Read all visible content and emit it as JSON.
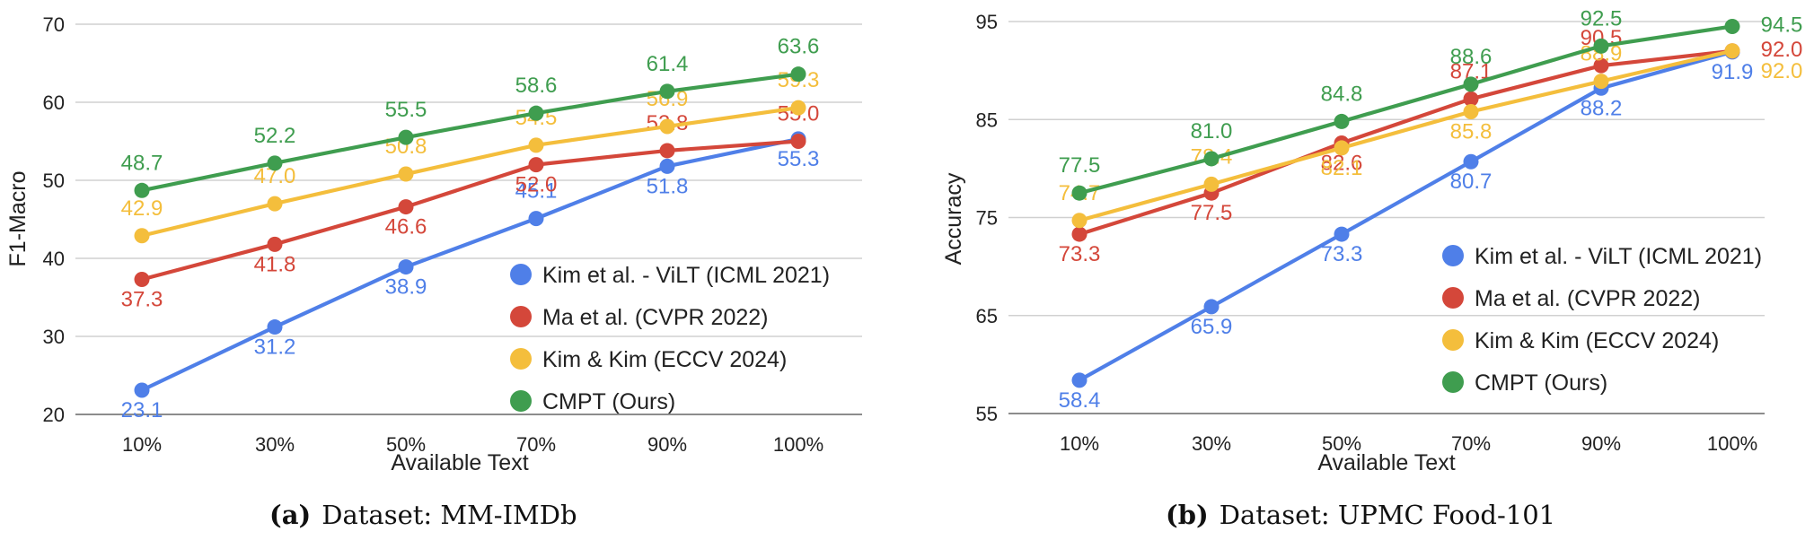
{
  "chart_data": [
    {
      "type": "line",
      "caption_letter": "(a)",
      "caption_text": "Dataset: MM-IMDb",
      "xlabel": "Available Text",
      "ylabel": "F1-Macro",
      "categories": [
        "10%",
        "30%",
        "50%",
        "70%",
        "90%",
        "100%"
      ],
      "ylim": [
        20,
        70
      ],
      "yticks": [
        20,
        30,
        40,
        50,
        60,
        70
      ],
      "grid": true,
      "legend_position": "bottom-right",
      "series": [
        {
          "name": "Kim et al. - ViLT (ICML 2021)",
          "color": "#4f7fe8",
          "values": [
            23.1,
            31.2,
            38.9,
            45.1,
            51.8,
            55.3
          ],
          "label_text": [
            "23.1",
            "31.2",
            "38.9",
            "45.1",
            "51.8",
            "55.3"
          ]
        },
        {
          "name": "Ma et al. (CVPR 2022)",
          "color": "#d4473a",
          "values": [
            37.3,
            41.8,
            46.6,
            52.0,
            53.8,
            55.0
          ],
          "label_text": [
            "37.3",
            "41.8",
            "46.6",
            "52.0",
            "53.8",
            "55.0"
          ]
        },
        {
          "name": "Kim & Kim (ECCV 2024)",
          "color": "#f4be3c",
          "values": [
            42.9,
            47.0,
            50.8,
            54.5,
            56.9,
            59.3
          ],
          "label_text": [
            "42.9",
            "47.0",
            "50.8",
            "54.5",
            "56.9",
            "59.3"
          ]
        },
        {
          "name": "CMPT (Ours)",
          "color": "#3f9d4f",
          "values": [
            48.7,
            52.2,
            55.5,
            58.6,
            61.4,
            63.6
          ],
          "label_text": [
            "48.7",
            "52.2",
            "55.5",
            "58.6",
            "61.4",
            "63.6"
          ]
        }
      ]
    },
    {
      "type": "line",
      "caption_letter": "(b)",
      "caption_text": "Dataset: UPMC Food-101",
      "xlabel": "Available Text",
      "ylabel": "Accuracy",
      "categories": [
        "10%",
        "30%",
        "50%",
        "70%",
        "90%",
        "100%"
      ],
      "ylim": [
        55,
        95
      ],
      "yticks": [
        55,
        65,
        75,
        85,
        95
      ],
      "grid": true,
      "legend_position": "bottom-right",
      "series": [
        {
          "name": "Kim et al. - ViLT (ICML 2021)",
          "color": "#4f7fe8",
          "values": [
            58.4,
            65.9,
            73.3,
            80.7,
            88.2,
            91.9
          ],
          "label_text": [
            "58.4",
            "65.9",
            "73.3",
            "80.7",
            "88.2",
            "91.9"
          ]
        },
        {
          "name": "Ma et al. (CVPR 2022)",
          "color": "#d4473a",
          "values": [
            73.3,
            77.5,
            82.6,
            87.1,
            90.5,
            92.0
          ],
          "label_text": [
            "73.3",
            "77.5",
            "82.6",
            "87.1",
            "90.5",
            "92.0"
          ]
        },
        {
          "name": "Kim & Kim (ECCV 2024)",
          "color": "#f4be3c",
          "values": [
            74.7,
            78.4,
            82.1,
            85.8,
            88.9,
            92.0
          ],
          "label_text": [
            "74.7",
            "78.4",
            "82.1",
            "85.8",
            "88.9",
            "92.0"
          ]
        },
        {
          "name": "CMPT (Ours)",
          "color": "#3f9d4f",
          "values": [
            77.5,
            81.0,
            84.8,
            88.6,
            92.5,
            94.5
          ],
          "label_text": [
            "77.5",
            "81.0",
            "84.8",
            "88.6",
            "92.5",
            "94.5"
          ]
        }
      ]
    }
  ]
}
